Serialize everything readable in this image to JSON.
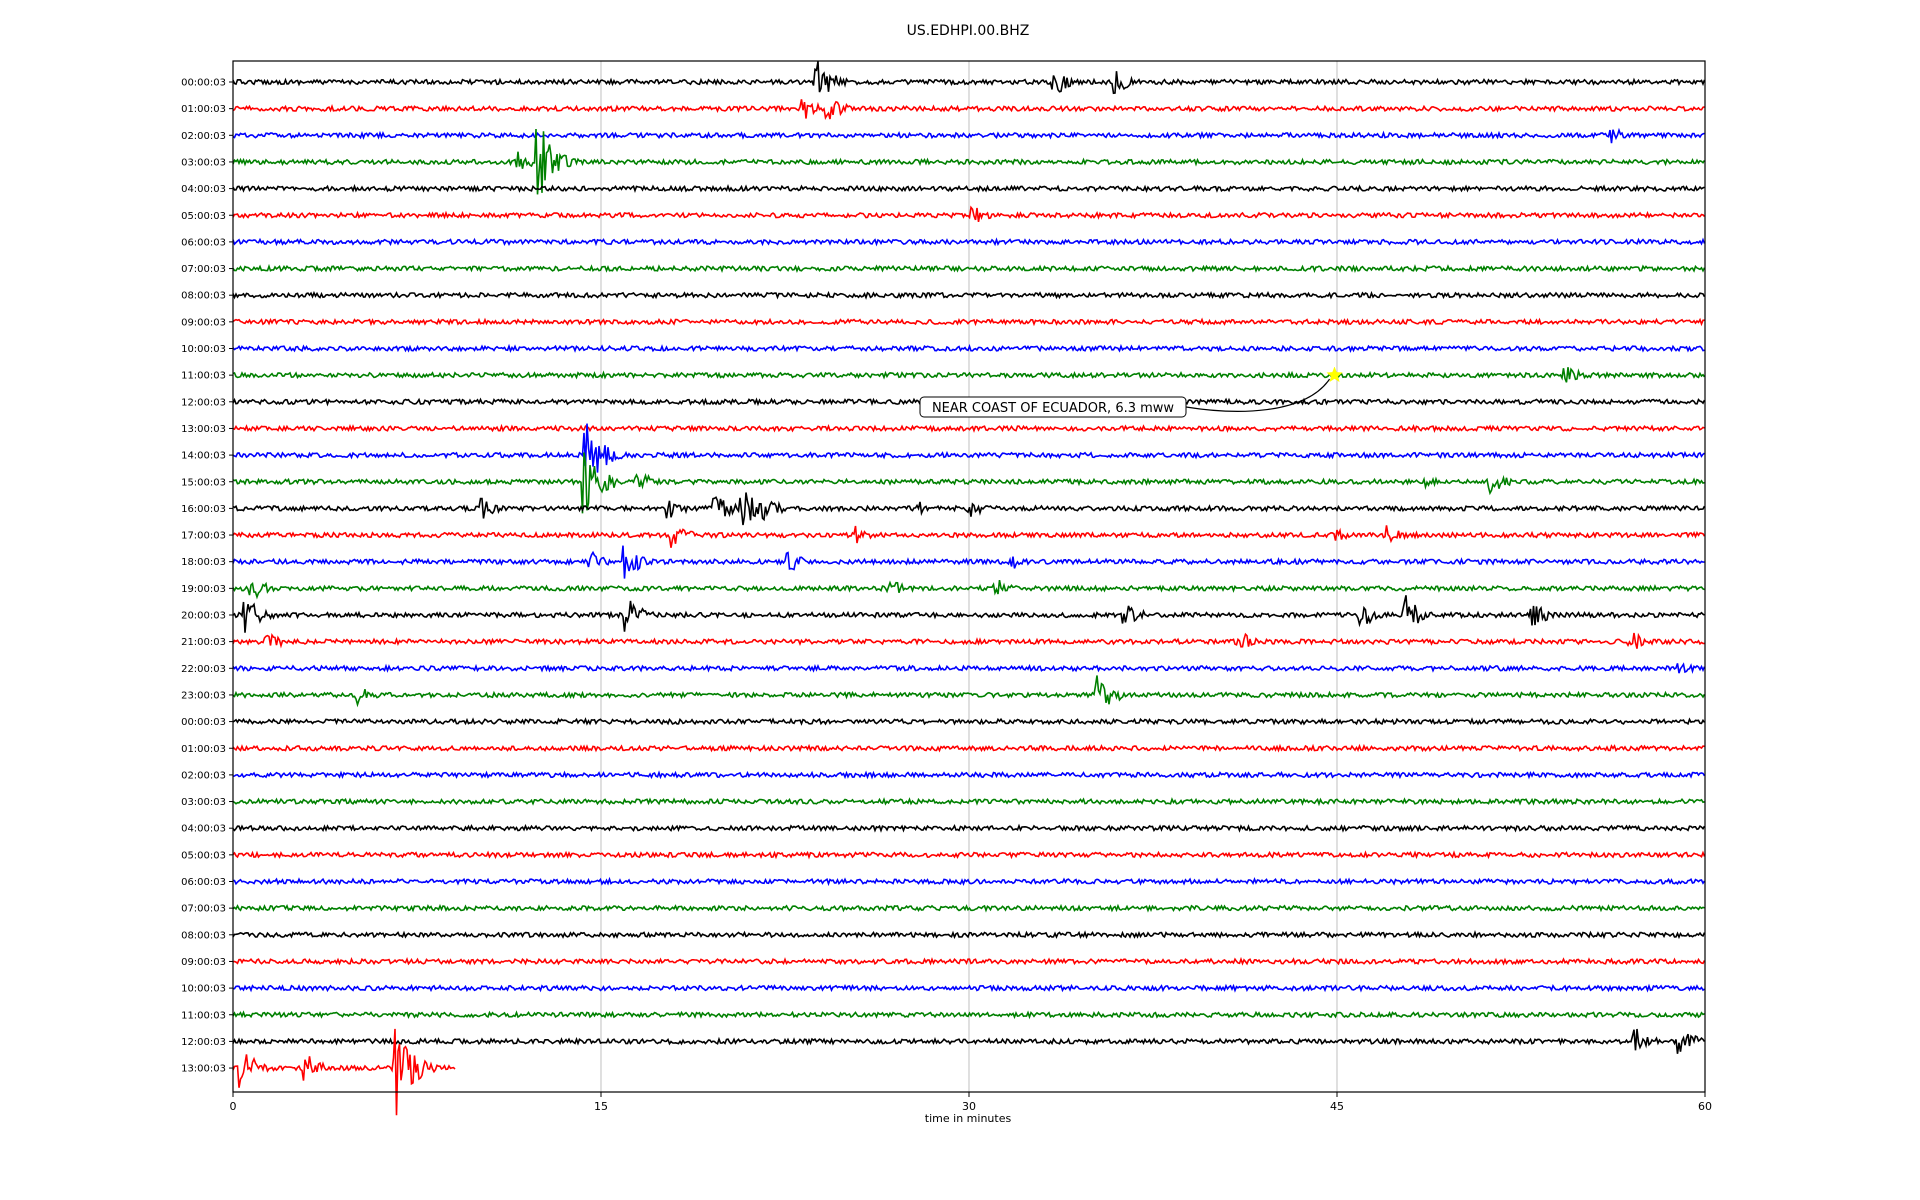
{
  "chart_data": {
    "type": "line",
    "title": "US.EDHPI.00.BHZ",
    "xlabel": "time in minutes",
    "ylabel": "",
    "xlim": [
      0,
      60
    ],
    "x_ticks": [
      0,
      15,
      30,
      45,
      60
    ],
    "x_tick_labels": [
      "0",
      "15",
      "30",
      "45",
      "60"
    ],
    "grid": "vertical lines at x ticks",
    "row_labels": [
      "00:00:03",
      "01:00:03",
      "02:00:03",
      "03:00:03",
      "04:00:03",
      "05:00:03",
      "06:00:03",
      "07:00:03",
      "08:00:03",
      "09:00:03",
      "10:00:03",
      "11:00:03",
      "12:00:03",
      "13:00:03",
      "14:00:03",
      "15:00:03",
      "16:00:03",
      "17:00:03",
      "18:00:03",
      "19:00:03",
      "20:00:03",
      "21:00:03",
      "22:00:03",
      "23:00:03",
      "00:00:03",
      "01:00:03",
      "02:00:03",
      "03:00:03",
      "04:00:03",
      "05:00:03",
      "06:00:03",
      "07:00:03",
      "08:00:03",
      "09:00:03",
      "10:00:03",
      "11:00:03",
      "12:00:03",
      "13:00:03"
    ],
    "trace_colors": [
      "#000000",
      "#ff0000",
      "#0000ff",
      "#008000"
    ],
    "last_row_end_minute": 9.1,
    "events": [
      {
        "row": 0,
        "minute": 23.8,
        "amp": 0.9
      },
      {
        "row": 0,
        "minute": 24.3,
        "amp": 0.4
      },
      {
        "row": 0,
        "minute": 33.5,
        "amp": 0.6
      },
      {
        "row": 0,
        "minute": 36.0,
        "amp": 0.5
      },
      {
        "row": 1,
        "minute": 23.3,
        "amp": 0.5
      },
      {
        "row": 1,
        "minute": 24.2,
        "amp": 0.7
      },
      {
        "row": 2,
        "minute": 56.2,
        "amp": 0.35
      },
      {
        "row": 3,
        "minute": 11.6,
        "amp": 0.45
      },
      {
        "row": 3,
        "minute": 12.5,
        "amp": 1.7
      },
      {
        "row": 5,
        "minute": 30.2,
        "amp": 0.35
      },
      {
        "row": 11,
        "minute": 54.3,
        "amp": 0.4
      },
      {
        "row": 14,
        "minute": 14.4,
        "amp": 1.6
      },
      {
        "row": 15,
        "minute": 14.4,
        "amp": 1.2
      },
      {
        "row": 15,
        "minute": 15.0,
        "amp": 0.6
      },
      {
        "row": 15,
        "minute": 16.5,
        "amp": 0.45
      },
      {
        "row": 15,
        "minute": 48.6,
        "amp": 0.3
      },
      {
        "row": 15,
        "minute": 51.3,
        "amp": 0.45
      },
      {
        "row": 16,
        "minute": 10.2,
        "amp": 0.4
      },
      {
        "row": 16,
        "minute": 17.8,
        "amp": 0.4
      },
      {
        "row": 16,
        "minute": 19.7,
        "amp": 0.6
      },
      {
        "row": 16,
        "minute": 20.8,
        "amp": 0.8
      },
      {
        "row": 16,
        "minute": 21.7,
        "amp": 0.5
      },
      {
        "row": 16,
        "minute": 27.9,
        "amp": 0.3
      },
      {
        "row": 16,
        "minute": 30.0,
        "amp": 0.4
      },
      {
        "row": 17,
        "minute": 17.9,
        "amp": 0.55
      },
      {
        "row": 17,
        "minute": 25.3,
        "amp": 0.4
      },
      {
        "row": 17,
        "minute": 44.8,
        "amp": 0.4
      },
      {
        "row": 17,
        "minute": 47.0,
        "amp": 0.4
      },
      {
        "row": 18,
        "minute": 14.6,
        "amp": 0.4
      },
      {
        "row": 18,
        "minute": 16.0,
        "amp": 0.7
      },
      {
        "row": 18,
        "minute": 22.7,
        "amp": 0.4
      },
      {
        "row": 18,
        "minute": 31.8,
        "amp": 0.3
      },
      {
        "row": 19,
        "minute": 0.8,
        "amp": 0.45
      },
      {
        "row": 19,
        "minute": 26.7,
        "amp": 0.45
      },
      {
        "row": 19,
        "minute": 31.1,
        "amp": 0.4
      },
      {
        "row": 20,
        "minute": 0.5,
        "amp": 0.8
      },
      {
        "row": 20,
        "minute": 16.0,
        "amp": 0.8
      },
      {
        "row": 20,
        "minute": 36.4,
        "amp": 0.5
      },
      {
        "row": 20,
        "minute": 46.0,
        "amp": 0.5
      },
      {
        "row": 20,
        "minute": 47.8,
        "amp": 0.8
      },
      {
        "row": 20,
        "minute": 53.0,
        "amp": 0.5
      },
      {
        "row": 21,
        "minute": 1.3,
        "amp": 0.5
      },
      {
        "row": 21,
        "minute": 41.0,
        "amp": 0.45
      },
      {
        "row": 21,
        "minute": 57.0,
        "amp": 0.4
      },
      {
        "row": 22,
        "minute": 59.0,
        "amp": 0.3
      },
      {
        "row": 23,
        "minute": 5.1,
        "amp": 0.4
      },
      {
        "row": 23,
        "minute": 35.3,
        "amp": 0.8
      },
      {
        "row": 36,
        "minute": 57.2,
        "amp": 0.5
      },
      {
        "row": 36,
        "minute": 59.0,
        "amp": 0.6
      },
      {
        "row": 37,
        "minute": 0.4,
        "amp": 0.8
      },
      {
        "row": 37,
        "minute": 2.9,
        "amp": 0.7
      },
      {
        "row": 37,
        "minute": 6.7,
        "amp": 2.0
      },
      {
        "row": 37,
        "minute": 7.1,
        "amp": 0.6
      }
    ],
    "annotation": {
      "text": "NEAR COAST OF ECUADOR, 6.3 mww",
      "row": 11,
      "minute": 44.9,
      "marker": "star",
      "marker_color": "#ffff00"
    }
  }
}
